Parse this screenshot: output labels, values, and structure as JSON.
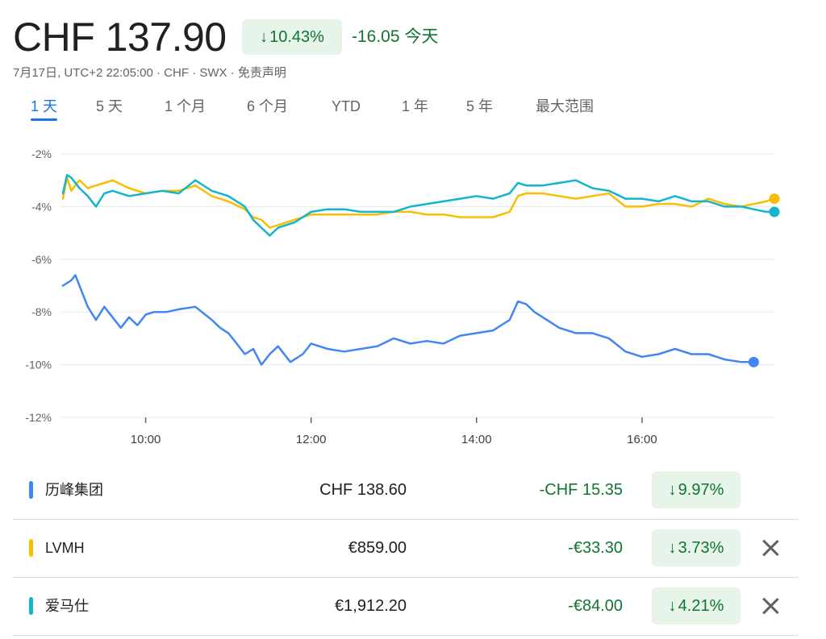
{
  "header": {
    "price": "CHF 137.90",
    "pct_change": "10.43%",
    "abs_change": "-16.05",
    "period_label": "今天",
    "subline": "7月17日, UTC+2 22:05:00 · CHF · SWX · 免责声明"
  },
  "tabs": [
    {
      "label": "1 天",
      "active": true
    },
    {
      "label": "5 天",
      "active": false
    },
    {
      "label": "1 个月",
      "active": false
    },
    {
      "label": "6 个月",
      "active": false
    },
    {
      "label": "YTD",
      "active": false
    },
    {
      "label": "1 年",
      "active": false
    },
    {
      "label": "5 年",
      "active": false
    },
    {
      "label": "最大范围",
      "active": false
    }
  ],
  "chart_data": {
    "type": "line",
    "y_ticks": [
      "-2%",
      "-4%",
      "-6%",
      "-8%",
      "-10%",
      "-12%"
    ],
    "ylim": [
      -12,
      -2
    ],
    "x_ticks": [
      "10:00",
      "12:00",
      "14:00",
      "16:00"
    ],
    "xlim_hours": [
      9.0,
      17.6
    ],
    "grid": true,
    "series": [
      {
        "name": "历峰集团",
        "color": "#4285f4",
        "x": [
          9.0,
          9.1,
          9.15,
          9.2,
          9.3,
          9.4,
          9.5,
          9.6,
          9.7,
          9.8,
          9.9,
          10.0,
          10.1,
          10.25,
          10.4,
          10.6,
          10.8,
          10.9,
          11.0,
          11.1,
          11.2,
          11.3,
          11.4,
          11.5,
          11.6,
          11.75,
          11.9,
          12.0,
          12.2,
          12.4,
          12.6,
          12.8,
          13.0,
          13.2,
          13.4,
          13.6,
          13.8,
          14.0,
          14.2,
          14.4,
          14.5,
          14.6,
          14.7,
          14.8,
          15.0,
          15.2,
          15.4,
          15.6,
          15.8,
          16.0,
          16.2,
          16.4,
          16.6,
          16.8,
          17.0,
          17.2,
          17.35
        ],
        "y": [
          -7.0,
          -6.8,
          -6.6,
          -7.0,
          -7.8,
          -8.3,
          -7.8,
          -8.2,
          -8.6,
          -8.2,
          -8.5,
          -8.1,
          -8.0,
          -8.0,
          -7.9,
          -7.8,
          -8.3,
          -8.6,
          -8.8,
          -9.2,
          -9.6,
          -9.4,
          -10.0,
          -9.6,
          -9.3,
          -9.9,
          -9.6,
          -9.2,
          -9.4,
          -9.5,
          -9.4,
          -9.3,
          -9.0,
          -9.2,
          -9.1,
          -9.2,
          -8.9,
          -8.8,
          -8.7,
          -8.3,
          -7.6,
          -7.7,
          -8.0,
          -8.2,
          -8.6,
          -8.8,
          -8.8,
          -9.0,
          -9.5,
          -9.7,
          -9.6,
          -9.4,
          -9.6,
          -9.6,
          -9.8,
          -9.9,
          -9.9
        ]
      },
      {
        "name": "LVMH",
        "color": "#fbbc04",
        "x": [
          9.0,
          9.05,
          9.1,
          9.2,
          9.3,
          9.4,
          9.5,
          9.6,
          9.8,
          10.0,
          10.2,
          10.4,
          10.6,
          10.8,
          11.0,
          11.2,
          11.3,
          11.4,
          11.5,
          11.6,
          11.8,
          12.0,
          12.2,
          12.4,
          12.6,
          12.8,
          13.0,
          13.2,
          13.4,
          13.6,
          13.8,
          14.0,
          14.2,
          14.4,
          14.5,
          14.6,
          14.8,
          15.0,
          15.2,
          15.4,
          15.6,
          15.8,
          16.0,
          16.2,
          16.4,
          16.6,
          16.8,
          17.0,
          17.2,
          17.35,
          17.5,
          17.6
        ],
        "y": [
          -3.7,
          -2.9,
          -3.4,
          -3.0,
          -3.3,
          -3.2,
          -3.1,
          -3.0,
          -3.3,
          -3.5,
          -3.4,
          -3.4,
          -3.2,
          -3.6,
          -3.8,
          -4.1,
          -4.4,
          -4.5,
          -4.8,
          -4.7,
          -4.5,
          -4.3,
          -4.3,
          -4.3,
          -4.3,
          -4.3,
          -4.2,
          -4.2,
          -4.3,
          -4.3,
          -4.4,
          -4.4,
          -4.4,
          -4.2,
          -3.6,
          -3.5,
          -3.5,
          -3.6,
          -3.7,
          -3.6,
          -3.5,
          -4.0,
          -4.0,
          -3.9,
          -3.9,
          -4.0,
          -3.7,
          -3.9,
          -4.0,
          -3.9,
          -3.8,
          -3.7
        ]
      },
      {
        "name": "爱马仕",
        "color": "#12b5cb",
        "x": [
          9.0,
          9.05,
          9.1,
          9.2,
          9.3,
          9.4,
          9.5,
          9.6,
          9.8,
          10.0,
          10.2,
          10.4,
          10.6,
          10.8,
          11.0,
          11.2,
          11.3,
          11.4,
          11.5,
          11.6,
          11.8,
          12.0,
          12.2,
          12.4,
          12.6,
          12.8,
          13.0,
          13.2,
          13.4,
          13.6,
          13.8,
          14.0,
          14.2,
          14.4,
          14.5,
          14.6,
          14.8,
          15.0,
          15.2,
          15.4,
          15.6,
          15.8,
          16.0,
          16.2,
          16.4,
          16.6,
          16.8,
          17.0,
          17.2,
          17.35,
          17.5,
          17.6
        ],
        "y": [
          -3.5,
          -2.8,
          -2.9,
          -3.3,
          -3.6,
          -4.0,
          -3.5,
          -3.4,
          -3.6,
          -3.5,
          -3.4,
          -3.5,
          -3.0,
          -3.4,
          -3.6,
          -4.0,
          -4.5,
          -4.8,
          -5.1,
          -4.8,
          -4.6,
          -4.2,
          -4.1,
          -4.1,
          -4.2,
          -4.2,
          -4.2,
          -4.0,
          -3.9,
          -3.8,
          -3.7,
          -3.6,
          -3.7,
          -3.5,
          -3.1,
          -3.2,
          -3.2,
          -3.1,
          -3.0,
          -3.3,
          -3.4,
          -3.7,
          -3.7,
          -3.8,
          -3.6,
          -3.8,
          -3.8,
          -4.0,
          -4.0,
          -4.1,
          -4.2,
          -4.2
        ]
      }
    ]
  },
  "rows": [
    {
      "name": "历峰集团",
      "color": "#4285f4",
      "price": "CHF 138.60",
      "change": "-CHF 15.35",
      "pct": "9.97%",
      "closable": false
    },
    {
      "name": "LVMH",
      "color": "#fbbc04",
      "price": "€859.00",
      "change": "-€33.30",
      "pct": "3.73%",
      "closable": true
    },
    {
      "name": "爱马仕",
      "color": "#12b5cb",
      "price": "€1,912.20",
      "change": "-€84.00",
      "pct": "4.21%",
      "closable": true
    }
  ]
}
